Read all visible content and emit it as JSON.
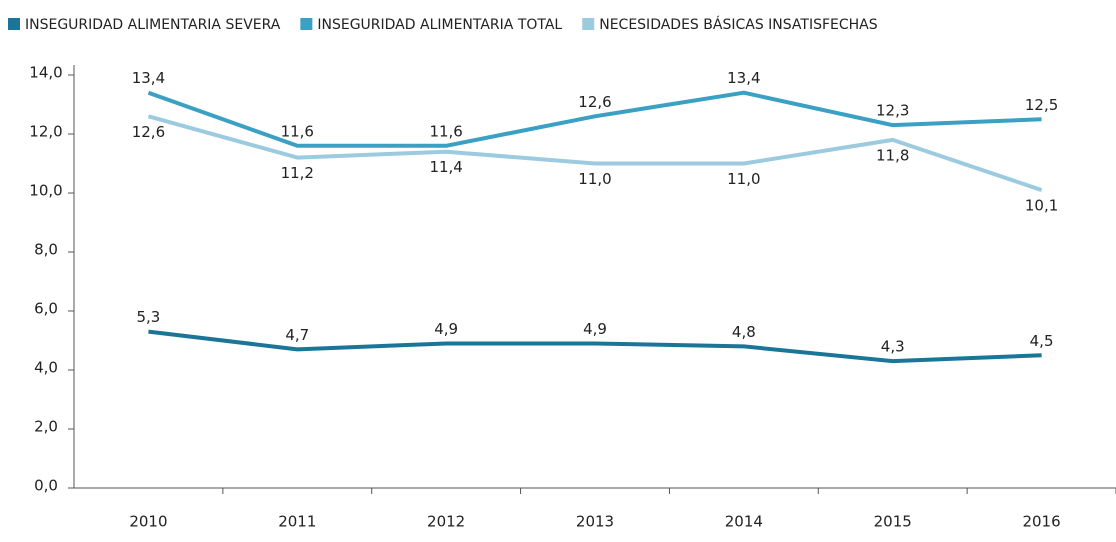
{
  "chart_data": {
    "type": "line",
    "categories": [
      "2010",
      "2011",
      "2012",
      "2013",
      "2014",
      "2015",
      "2016"
    ],
    "series": [
      {
        "name": "INSEGURIDAD ALIMENTARIA SEVERA",
        "color": "#1a7598",
        "values": [
          5.3,
          4.7,
          4.9,
          4.9,
          4.8,
          4.3,
          4.5
        ],
        "value_labels": [
          "5,3",
          "4,7",
          "4,9",
          "4,9",
          "4,8",
          "4,3",
          "4,5"
        ]
      },
      {
        "name": "INSEGURIDAD ALIMENTARIA TOTAL",
        "color": "#3aa0c4",
        "values": [
          13.4,
          11.6,
          11.6,
          12.6,
          13.4,
          12.3,
          12.5
        ],
        "value_labels": [
          "13,4",
          "11,6",
          "11,6",
          "12,6",
          "13,4",
          "12,3",
          "12,5"
        ]
      },
      {
        "name": "NECESIDADES BÁSICAS INSATISFECHAS",
        "color": "#9ccbe0",
        "values": [
          12.6,
          11.2,
          11.4,
          11.0,
          11.0,
          11.8,
          10.1
        ],
        "value_labels": [
          "12,6",
          "11,2",
          "11,4",
          "11,0",
          "11,0",
          "11,8",
          "10,1"
        ]
      }
    ],
    "ylim": [
      0,
      14
    ],
    "yticks": [
      {
        "value": 0,
        "label": "0,0"
      },
      {
        "value": 2,
        "label": "2,0"
      },
      {
        "value": 4,
        "label": "4,0"
      },
      {
        "value": 6,
        "label": "6,0"
      },
      {
        "value": 8,
        "label": "8,0"
      },
      {
        "value": 10,
        "label": "10,0"
      },
      {
        "value": 12,
        "label": "12,0"
      },
      {
        "value": 14,
        "label": "14,0"
      }
    ],
    "legend": "top"
  }
}
